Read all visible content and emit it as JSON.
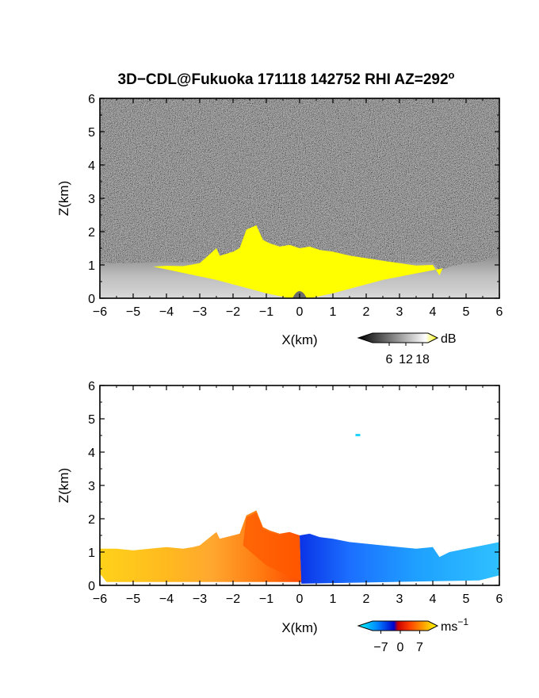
{
  "chart_data": [
    {
      "type": "heatmap",
      "title": "3D−CDL@Fukuoka 171118 142752 RHI AZ=292",
      "title_superscript": "o",
      "xlabel": "X(km)",
      "ylabel": "Z(km)",
      "xlim": [
        -6,
        6
      ],
      "ylim": [
        0,
        6
      ],
      "x_ticks": [
        "−6",
        "−5",
        "−4",
        "−3",
        "−2",
        "−1",
        "0",
        "1",
        "2",
        "3",
        "4",
        "5",
        "6"
      ],
      "y_ticks": [
        "0",
        "1",
        "2",
        "3",
        "4",
        "5",
        "6"
      ],
      "grid": false,
      "field": "reflectivity",
      "colorbar": {
        "unit": "dB",
        "unit_superscript": "",
        "tick_labels": [
          "6",
          "12",
          "18"
        ],
        "range": [
          0,
          20
        ],
        "colors": [
          "#000000",
          "#333333",
          "#666666",
          "#999999",
          "#cccccc",
          "#ffffff",
          "#ffff00"
        ]
      },
      "regions": [
        {
          "name": "background noise",
          "color": "#2e2e2e"
        },
        {
          "name": "low-level echo",
          "color": "#b0b0b0"
        },
        {
          "name": "saturated core",
          "color": "#ffff00"
        }
      ],
      "echo_top_profile": {
        "x": [
          -6.0,
          -5.5,
          -5.0,
          -4.5,
          -4.0,
          -3.5,
          -3.2,
          -3.0,
          -2.5,
          -2.4,
          -2.0,
          -1.8,
          -1.6,
          -1.3,
          -1.1,
          -0.9,
          -0.6,
          -0.3,
          0.0,
          0.3,
          0.6,
          1.0,
          1.5,
          2.0,
          2.5,
          3.0,
          3.5,
          4.0,
          4.2,
          4.5,
          5.0,
          5.5,
          6.0
        ],
        "z": [
          1.0,
          1.05,
          1.05,
          1.08,
          1.12,
          1.08,
          1.12,
          1.15,
          1.6,
          1.35,
          1.45,
          1.55,
          2.1,
          2.2,
          1.75,
          1.65,
          1.55,
          1.6,
          1.5,
          1.55,
          1.45,
          1.4,
          1.3,
          1.25,
          1.2,
          1.15,
          1.1,
          1.15,
          0.8,
          0.95,
          1.05,
          1.15,
          1.3
        ]
      }
    },
    {
      "type": "heatmap",
      "title": "",
      "xlabel": "X(km)",
      "ylabel": "Z(km)",
      "xlim": [
        -6,
        6
      ],
      "ylim": [
        0,
        6
      ],
      "x_ticks": [
        "−6",
        "−5",
        "−4",
        "−3",
        "−2",
        "−1",
        "0",
        "1",
        "2",
        "3",
        "4",
        "5",
        "6"
      ],
      "y_ticks": [
        "0",
        "1",
        "2",
        "3",
        "4",
        "5",
        "6"
      ],
      "grid": false,
      "field": "doppler_velocity",
      "colorbar": {
        "unit": "ms",
        "unit_superscript": "−1",
        "tick_labels": [
          "−7",
          "0",
          "7"
        ],
        "range": [
          -10,
          10
        ],
        "colors": [
          "#00ffff",
          "#00aaff",
          "#0044ff",
          "#0000cc",
          "#ff0000",
          "#ff6600",
          "#ffcc00",
          "#ffff00"
        ]
      },
      "regions": [
        {
          "name": "approaching (negative, x>0)",
          "color": "#1e9cff"
        },
        {
          "name": "receding (positive, x<0)",
          "color": "#ff8c1a"
        }
      ],
      "echo_top_profile": {
        "x": [
          -6.0,
          -5.5,
          -5.0,
          -4.5,
          -4.0,
          -3.5,
          -3.2,
          -3.0,
          -2.5,
          -2.4,
          -2.0,
          -1.8,
          -1.6,
          -1.3,
          -1.1,
          -0.9,
          -0.6,
          -0.3,
          0.0,
          0.3,
          0.6,
          1.0,
          1.5,
          2.0,
          2.5,
          3.0,
          3.5,
          4.0,
          4.2,
          4.5,
          5.0,
          5.5,
          6.0
        ],
        "z": [
          1.1,
          1.1,
          1.05,
          1.1,
          1.15,
          1.1,
          1.15,
          1.2,
          1.6,
          1.4,
          1.5,
          1.55,
          2.1,
          2.25,
          1.75,
          1.65,
          1.55,
          1.6,
          1.5,
          1.55,
          1.45,
          1.4,
          1.3,
          1.25,
          1.2,
          1.15,
          1.1,
          1.15,
          0.85,
          1.0,
          1.1,
          1.2,
          1.3
        ]
      },
      "isolated_echo": {
        "x": 1.75,
        "z": 4.5
      }
    }
  ]
}
